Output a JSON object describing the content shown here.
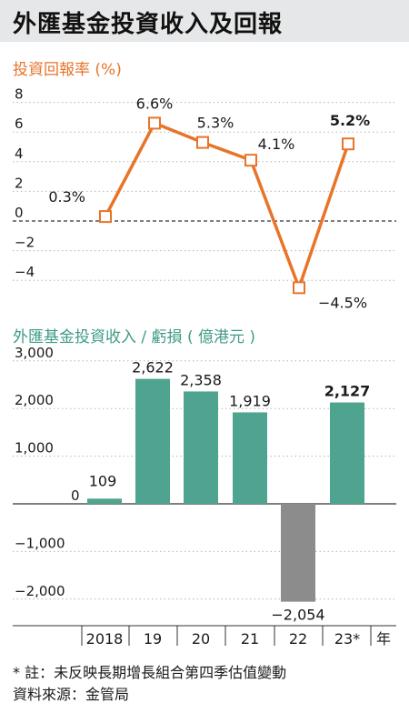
{
  "header": {
    "title": "外匯基金投資收入及回報"
  },
  "footer": {
    "note": "* 註：未反映長期增長組合第四季估值變動",
    "source": "資料來源：金管局"
  },
  "colors": {
    "line": "#e8742a",
    "bar_positive": "#4fa48f",
    "bar_negative": "#8c8c8c"
  },
  "chart_data": [
    {
      "type": "line",
      "title": "投資回報率 (%)",
      "categories": [
        "2018",
        "19",
        "20",
        "21",
        "22",
        "23*"
      ],
      "values": [
        0.3,
        6.6,
        5.3,
        4.1,
        -4.5,
        5.2
      ],
      "value_labels": [
        "0.3%",
        "6.6%",
        "5.3%",
        "4.1%",
        "−4.5%",
        "5.2%"
      ],
      "highlight_last": true,
      "ylim": [
        -5,
        8
      ],
      "y_ticks": [
        8,
        6,
        4,
        2,
        0,
        -2,
        -4
      ],
      "y_tick_labels": [
        "8",
        "6",
        "4",
        "2",
        "0",
        "−2",
        "−4"
      ],
      "grid": "dotted"
    },
    {
      "type": "bar",
      "title": "外匯基金投資收入 / 虧損 ( 億港元 )",
      "categories": [
        "2018",
        "19",
        "20",
        "21",
        "22",
        "23*"
      ],
      "values": [
        109,
        2622,
        2358,
        1919,
        -2054,
        2127
      ],
      "value_labels": [
        "109",
        "2,622",
        "2,358",
        "1,919",
        "−2,054",
        "2,127"
      ],
      "highlight_last": true,
      "ylim": [
        -2600,
        3000
      ],
      "y_ticks": [
        3000,
        2000,
        1000,
        0,
        -1000,
        -2000
      ],
      "y_tick_labels": [
        "3,000",
        "2,000",
        "1,000",
        "0",
        "−1,000",
        "−2,000"
      ],
      "x_unit": "年",
      "grid": "dotted"
    }
  ]
}
